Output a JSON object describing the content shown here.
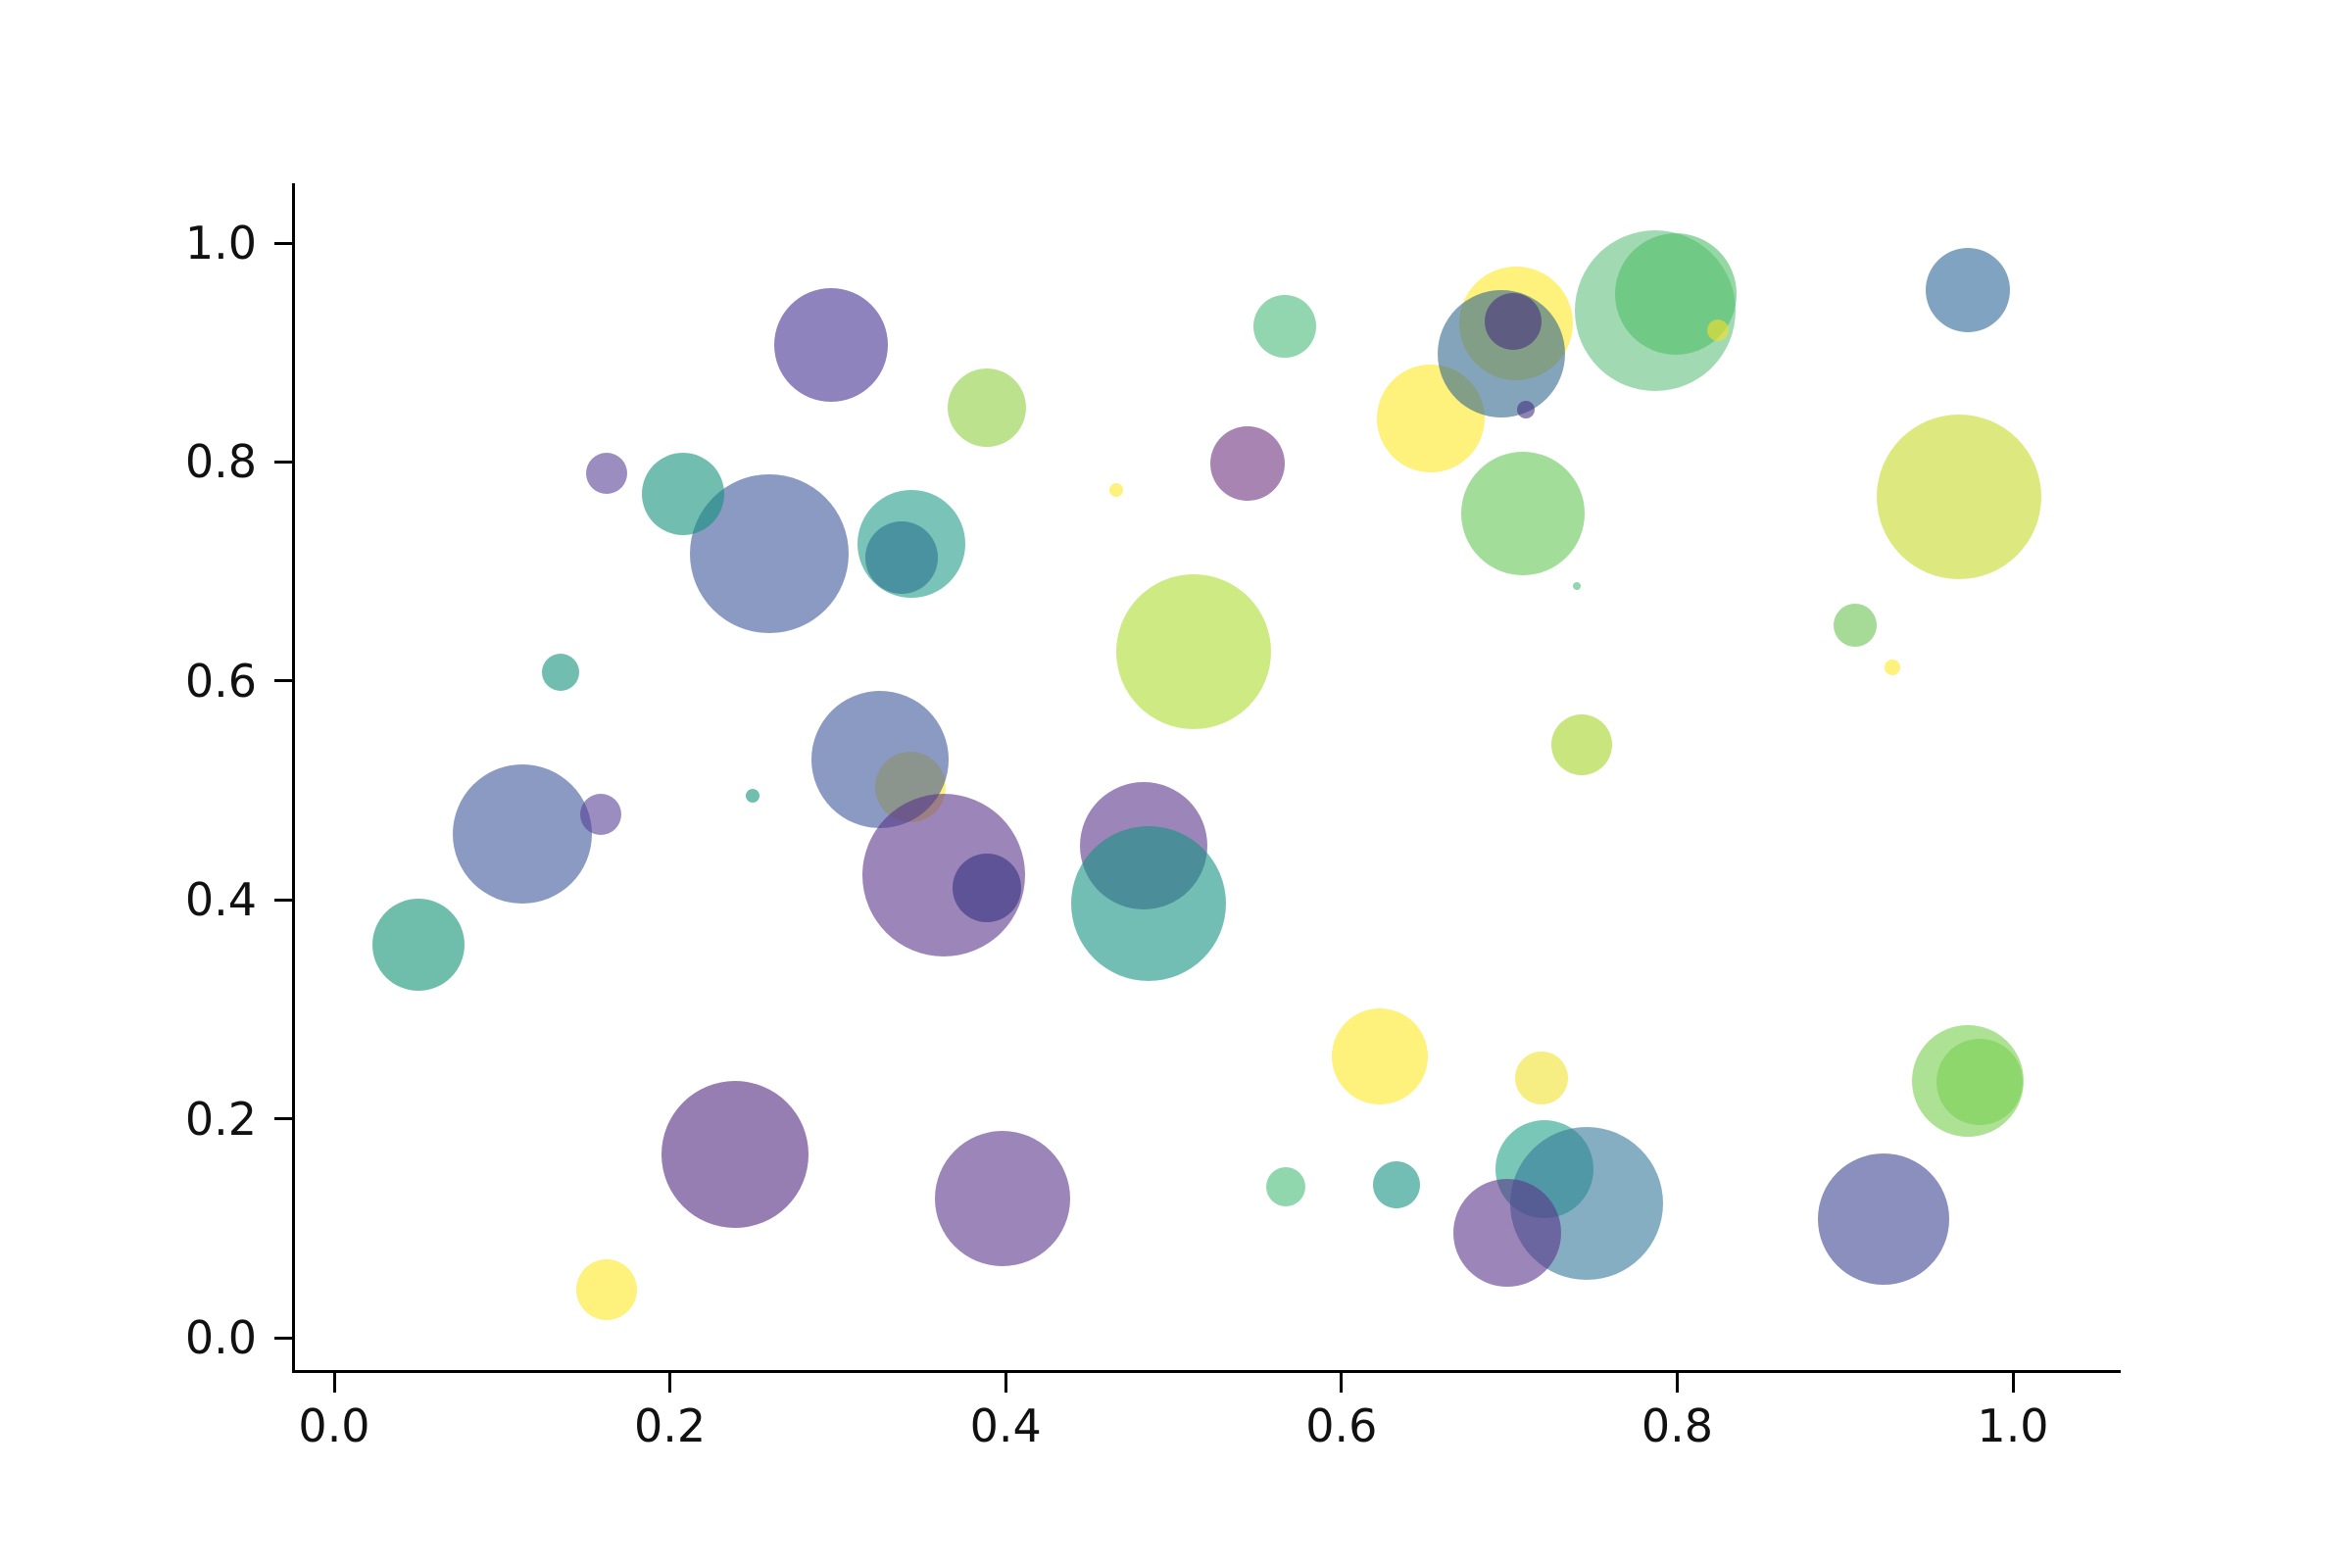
{
  "chart_data": {
    "type": "scatter",
    "subtype": "bubble",
    "title": "",
    "xlabel": "",
    "ylabel": "",
    "legend": "none",
    "grid": false,
    "alpha": 0.6,
    "xlim": [
      -0.024,
      1.064
    ],
    "ylim": [
      -0.03,
      1.055
    ],
    "x_ticks": [
      {
        "value": 0.0,
        "label": "0.0"
      },
      {
        "value": 0.2,
        "label": "0.2"
      },
      {
        "value": 0.4,
        "label": "0.4"
      },
      {
        "value": 0.6,
        "label": "0.6"
      },
      {
        "value": 0.8,
        "label": "0.8"
      },
      {
        "value": 1.0,
        "label": "1.0"
      }
    ],
    "y_ticks": [
      {
        "value": 0.0,
        "label": "0.0"
      },
      {
        "value": 0.2,
        "label": "0.2"
      },
      {
        "value": 0.4,
        "label": "0.4"
      },
      {
        "value": 0.6,
        "label": "0.6"
      },
      {
        "value": 0.8,
        "label": "0.8"
      },
      {
        "value": 1.0,
        "label": "1.0"
      }
    ],
    "points": [
      {
        "x": 0.259,
        "y": 0.716,
        "r": 81,
        "color": "#3d5699"
      },
      {
        "x": 0.208,
        "y": 0.771,
        "r": 42,
        "color": "#12937b"
      },
      {
        "x": 0.344,
        "y": 0.725,
        "r": 55,
        "color": "#209b8a"
      },
      {
        "x": 0.338,
        "y": 0.713,
        "r": 37,
        "color": "#2c728e"
      },
      {
        "x": 0.296,
        "y": 0.907,
        "r": 58,
        "color": "#43308f"
      },
      {
        "x": 0.162,
        "y": 0.79,
        "r": 21,
        "color": "#584196"
      },
      {
        "x": 0.135,
        "y": 0.608,
        "r": 19,
        "color": "#12937b"
      },
      {
        "x": 0.112,
        "y": 0.46,
        "r": 71,
        "color": "#3d5699"
      },
      {
        "x": 0.159,
        "y": 0.478,
        "r": 21,
        "color": "#584196"
      },
      {
        "x": 0.249,
        "y": 0.495,
        "r": 7,
        "color": "#12937b"
      },
      {
        "x": 0.05,
        "y": 0.359,
        "r": 47,
        "color": "#0f9375"
      },
      {
        "x": 0.343,
        "y": 0.503,
        "r": 36,
        "color": "#fde725"
      },
      {
        "x": 0.325,
        "y": 0.528,
        "r": 70,
        "color": "#3d5699"
      },
      {
        "x": 0.363,
        "y": 0.423,
        "r": 83,
        "color": "#5a3489"
      },
      {
        "x": 0.389,
        "y": 0.411,
        "r": 35,
        "color": "#36327e"
      },
      {
        "x": 0.482,
        "y": 0.449,
        "r": 65,
        "color": "#5a3489"
      },
      {
        "x": 0.485,
        "y": 0.397,
        "r": 79,
        "color": "#159382"
      },
      {
        "x": 0.566,
        "y": 0.924,
        "r": 32,
        "color": "#49ba79"
      },
      {
        "x": 0.389,
        "y": 0.85,
        "r": 40,
        "color": "#91cf41"
      },
      {
        "x": 0.544,
        "y": 0.799,
        "r": 38,
        "color": "#6c327e"
      },
      {
        "x": 0.466,
        "y": 0.774,
        "r": 7,
        "color": "#fde725"
      },
      {
        "x": 0.653,
        "y": 0.84,
        "r": 55,
        "color": "#fde725"
      },
      {
        "x": 0.512,
        "y": 0.627,
        "r": 79,
        "color": "#addc30"
      },
      {
        "x": 0.704,
        "y": 0.927,
        "r": 58,
        "color": "#fde725"
      },
      {
        "x": 0.695,
        "y": 0.899,
        "r": 65,
        "color": "#31688e"
      },
      {
        "x": 0.702,
        "y": 0.928,
        "r": 29,
        "color": "#46327e"
      },
      {
        "x": 0.71,
        "y": 0.848,
        "r": 9,
        "color": "#46327e"
      },
      {
        "x": 0.787,
        "y": 0.938,
        "r": 82,
        "color": "#62c17f"
      },
      {
        "x": 0.799,
        "y": 0.953,
        "r": 62,
        "color": "#50be66"
      },
      {
        "x": 0.824,
        "y": 0.92,
        "r": 11,
        "color": "#f5e027"
      },
      {
        "x": 0.973,
        "y": 0.957,
        "r": 43,
        "color": "#2a6696"
      },
      {
        "x": 0.968,
        "y": 0.768,
        "r": 84,
        "color": "#c6da2a"
      },
      {
        "x": 0.708,
        "y": 0.753,
        "r": 63,
        "color": "#64c656"
      },
      {
        "x": 0.74,
        "y": 0.687,
        "r": 4,
        "color": "#49ba79"
      },
      {
        "x": 0.743,
        "y": 0.542,
        "r": 31,
        "color": "#a3d428"
      },
      {
        "x": 0.906,
        "y": 0.651,
        "r": 22,
        "color": "#6ac351"
      },
      {
        "x": 0.928,
        "y": 0.612,
        "r": 8,
        "color": "#fde725"
      },
      {
        "x": 0.719,
        "y": 0.237,
        "r": 27,
        "color": "#f0e32f"
      },
      {
        "x": 0.721,
        "y": 0.154,
        "r": 50,
        "color": "#1fa187"
      },
      {
        "x": 0.746,
        "y": 0.123,
        "r": 78,
        "color": "#357899"
      },
      {
        "x": 0.699,
        "y": 0.096,
        "r": 55,
        "color": "#5a3489"
      },
      {
        "x": 0.923,
        "y": 0.108,
        "r": 67,
        "color": "#3c4493"
      },
      {
        "x": 0.973,
        "y": 0.235,
        "r": 57,
        "color": "#77cf4f"
      },
      {
        "x": 0.98,
        "y": 0.234,
        "r": 44,
        "color": "#7ad151"
      },
      {
        "x": 0.162,
        "y": 0.044,
        "r": 31,
        "color": "#fde725"
      },
      {
        "x": 0.239,
        "y": 0.167,
        "r": 75,
        "color": "#50267f"
      },
      {
        "x": 0.398,
        "y": 0.127,
        "r": 69,
        "color": "#5a3489"
      },
      {
        "x": 0.567,
        "y": 0.138,
        "r": 20,
        "color": "#46bc78"
      },
      {
        "x": 0.633,
        "y": 0.14,
        "r": 24,
        "color": "#159382"
      },
      {
        "x": 0.623,
        "y": 0.257,
        "r": 49,
        "color": "#fde725"
      }
    ]
  }
}
